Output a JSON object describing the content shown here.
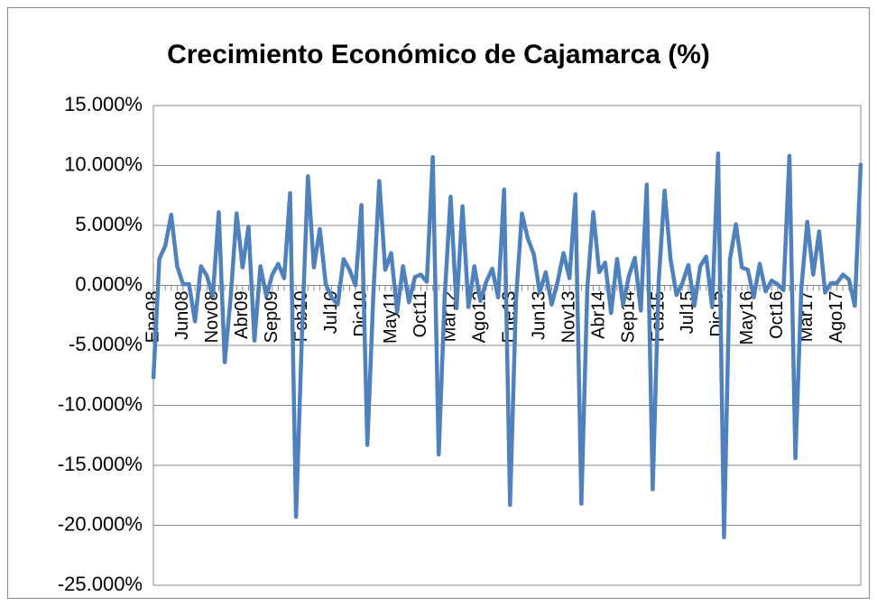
{
  "chart_data": {
    "type": "line",
    "title": "Crecimiento Económico de Cajamarca  (%)",
    "categories": [
      "Ene08",
      null,
      null,
      null,
      null,
      "Jun08",
      null,
      null,
      null,
      null,
      "Nov08",
      null,
      null,
      null,
      null,
      "Abr09",
      null,
      null,
      null,
      null,
      "Sep09",
      null,
      null,
      null,
      null,
      "Feb10",
      null,
      null,
      null,
      null,
      "Jul10",
      null,
      null,
      null,
      null,
      "Dic10",
      null,
      null,
      null,
      null,
      "May11",
      null,
      null,
      null,
      null,
      "Oct11",
      null,
      null,
      null,
      null,
      "Mar12",
      null,
      null,
      null,
      null,
      "Ago12",
      null,
      null,
      null,
      null,
      "Ene13",
      null,
      null,
      null,
      null,
      "Jun13",
      null,
      null,
      null,
      null,
      "Nov13",
      null,
      null,
      null,
      null,
      "Abr14",
      null,
      null,
      null,
      null,
      "Sep14",
      null,
      null,
      null,
      null,
      "Feb15",
      null,
      null,
      null,
      null,
      "Jul15",
      null,
      null,
      null,
      null,
      "Dic15",
      null,
      null,
      null,
      null,
      "May16",
      null,
      null,
      null,
      null,
      "Oct16",
      null,
      null,
      null,
      null,
      "Mar17",
      null,
      null,
      null,
      null,
      "Ago17",
      null,
      null,
      null,
      null
    ],
    "series": [
      {
        "name": "Crecimiento",
        "color": "#4f81bd",
        "values": [
          -7.8,
          2.2,
          3.3,
          5.9,
          1.6,
          0.1,
          0.1,
          -3.0,
          1.6,
          0.8,
          -0.9,
          6.1,
          -6.4,
          -1.0,
          6.0,
          1.5,
          4.9,
          -4.6,
          1.6,
          -0.9,
          0.9,
          1.8,
          0.6,
          7.7,
          -19.3,
          -4.0,
          9.1,
          1.5,
          4.7,
          0.1,
          -1.0,
          -1.6,
          2.2,
          1.3,
          0.0,
          6.7,
          -13.3,
          -0.8,
          8.7,
          1.3,
          2.7,
          -2.2,
          1.6,
          -1.4,
          0.7,
          0.9,
          0.3,
          10.7,
          -14.1,
          -1.0,
          7.4,
          -1.9,
          6.6,
          -1.8,
          1.6,
          -1.3,
          0.3,
          1.4,
          -1.0,
          8.0,
          -18.3,
          -1.2,
          6.0,
          3.9,
          2.6,
          -0.6,
          1.1,
          -1.6,
          0.3,
          2.7,
          0.6,
          7.6,
          -18.2,
          -0.2,
          6.1,
          1.1,
          1.9,
          -2.3,
          2.2,
          -1.6,
          0.8,
          2.3,
          -2.1,
          8.4,
          -17.0,
          0.3,
          7.9,
          2.2,
          -0.8,
          0.2,
          1.7,
          -1.7,
          1.6,
          2.4,
          -1.8,
          11.0,
          -21.0,
          2.2,
          5.1,
          1.5,
          1.3,
          -1.0,
          1.8,
          -0.5,
          0.4,
          0.1,
          -0.4,
          10.8,
          -14.4,
          -0.3,
          5.3,
          0.9,
          4.5,
          -0.6,
          0.2,
          0.2,
          0.9,
          0.5,
          -1.7,
          10.2
        ]
      }
    ],
    "ylim": [
      -25,
      15
    ],
    "yticks": [
      {
        "value": -25,
        "label": "-25.000%"
      },
      {
        "value": -20,
        "label": "-20.000%"
      },
      {
        "value": -15,
        "label": "-15.000%"
      },
      {
        "value": -10,
        "label": "-10.000%"
      },
      {
        "value": -5,
        "label": "-5.000%"
      },
      {
        "value": 0,
        "label": "0.000%"
      },
      {
        "value": 5,
        "label": "5.000%"
      },
      {
        "value": 10,
        "label": "10.000%"
      },
      {
        "value": 15,
        "label": "15.000%"
      }
    ],
    "grid": true
  }
}
